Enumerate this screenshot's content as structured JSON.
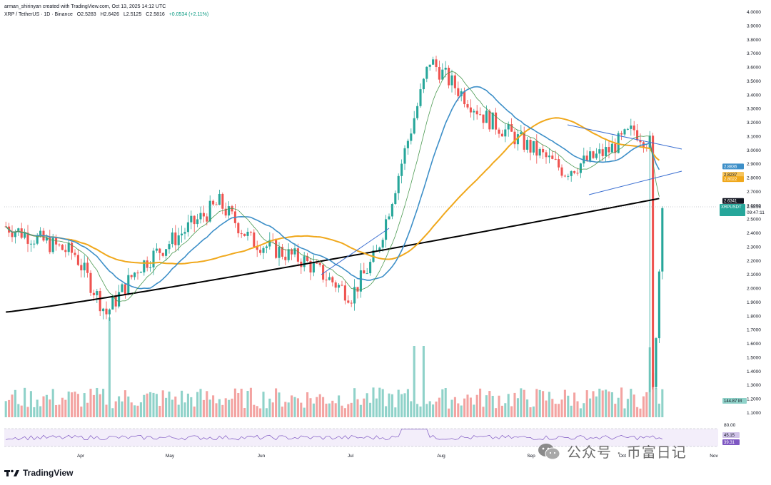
{
  "header": {
    "author_line": "arman_shirinyan created with TradingView.com, Oct 13, 2025 14:12 UTC",
    "symbol": "XRP / TetherUS · 1D · Binance",
    "open": "O2.5283",
    "high": "H2.6426",
    "low": "L2.5125",
    "close": "C2.5816",
    "change": "+0.0534 (+2.11%)"
  },
  "price_axis": {
    "ticks": [
      "4.0000",
      "3.9000",
      "3.8000",
      "3.7000",
      "3.6000",
      "3.5000",
      "3.4000",
      "3.3000",
      "3.2000",
      "3.1000",
      "3.0000",
      "2.9000",
      "2.8000",
      "2.7000",
      "2.6000",
      "2.5000",
      "2.4000",
      "2.3000",
      "2.2000",
      "2.1000",
      "2.0000",
      "1.9000",
      "1.8000",
      "1.7000",
      "1.6000",
      "1.5000",
      "1.4000",
      "1.3000",
      "1.2000",
      "1.1000"
    ]
  },
  "price_tags": {
    "ma_blue": "2.8836",
    "ma_orange": "2.8237",
    "ma_gold": "2.8022",
    "ma_black": "2.6341",
    "symbol_tag": "XRPUSDT",
    "last_price": "2.5816",
    "countdown": "09:47:11",
    "volume": "144.87 M"
  },
  "rsi": {
    "level_high": "80.00",
    "value_1": "45.15",
    "value_2": "39.31"
  },
  "time_axis": {
    "labels": [
      "Apr",
      "May",
      "Jun",
      "Jul",
      "Aug",
      "Sep",
      "Oct",
      "Nov"
    ]
  },
  "logo": {
    "text": "TradingView"
  },
  "watermark": {
    "text": "公众号 · 币富日记"
  },
  "colors": {
    "up": "#26a69a",
    "down": "#ef5350",
    "vol_up": "#8fd2c9",
    "vol_down": "#f3a3a1",
    "ma_black": "#000000",
    "ma_orange": "#f0a81c",
    "ma_blue": "#3d8fc8",
    "ma_green": "#4c9a52",
    "trendline": "#3b6fd1",
    "rsi_line": "#7e57c2"
  },
  "chart_data": {
    "type": "candlestick",
    "title": "XRP / TetherUS · 1D · Binance",
    "y_axis": {
      "min": 1.1,
      "max": 4.0,
      "scale": "linear"
    },
    "x_axis": {
      "labels": [
        "Apr",
        "May",
        "Jun",
        "Jul",
        "Aug",
        "Sep",
        "Oct",
        "Nov"
      ],
      "start": "Mar 2025",
      "end": "Nov 2025"
    },
    "moving_averages": [
      {
        "color": "black",
        "last": 2.6341
      },
      {
        "color": "orange",
        "last": 2.8237
      },
      {
        "color": "blue",
        "last": 2.8836
      },
      {
        "color": "green"
      }
    ],
    "last_price": 2.5816,
    "volume_last": "144.87 M",
    "rsi": {
      "upper_band": 80,
      "values": [
        45.15,
        39.31
      ]
    },
    "price_keypoints": [
      [
        "Mar",
        2.45
      ],
      [
        "Apr early",
        2.25
      ],
      [
        "Apr low",
        1.82
      ],
      [
        "Apr end",
        2.15
      ],
      [
        "May high",
        2.62
      ],
      [
        "May end",
        2.35
      ],
      [
        "Jun",
        2.2
      ],
      [
        "Jun low",
        1.95
      ],
      [
        "Jul start",
        2.25
      ],
      [
        "Jul high",
        3.65
      ],
      [
        "Aug",
        3.25
      ],
      [
        "Aug end",
        2.85
      ],
      [
        "Sep",
        3.0
      ],
      [
        "Sep high",
        3.15
      ],
      [
        "Oct",
        3.05
      ],
      [
        "Oct low",
        1.25
      ],
      [
        "Oct close",
        2.5816
      ]
    ],
    "grid": false
  }
}
